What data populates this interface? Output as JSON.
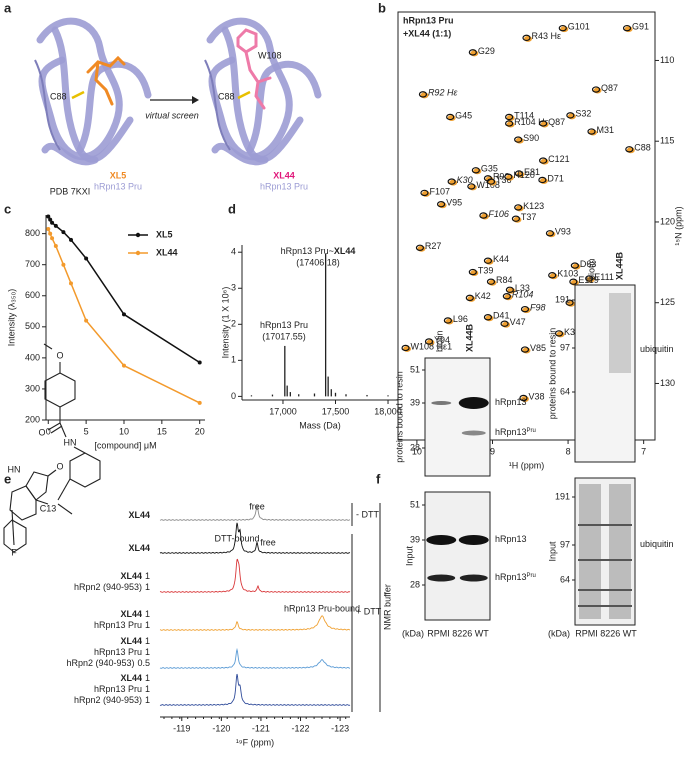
{
  "panels": {
    "a": {
      "label": "a",
      "ligand_site_left": "C88",
      "arrow": "virtual screen",
      "residue_right": "W108",
      "ligand_site_right": "C88",
      "compound_left": "XL5",
      "protein_left": "hRpn13 Pru",
      "pdb": "PDB 7KXI",
      "compound_right": "XL44",
      "protein_right": "hRpn13 Pru"
    },
    "e": {
      "label": "e",
      "structure": {
        "methoxy": "O",
        "amide_o": "O",
        "amide_n": "HN",
        "oxindole_n": "HN",
        "oxindole_o": "O",
        "stereo": "C13",
        "fluorine": "F"
      },
      "rows": [
        {
          "color": "#8a8a8a",
          "lines": [
            [
              "XL44"
            ]
          ]
        },
        {
          "color": "#111111",
          "lines": [
            [
              "XL44"
            ]
          ]
        },
        {
          "color": "#d9383a",
          "lines": [
            [
              "XL44",
              "1"
            ],
            [
              "hRpn2 (940-953)",
              "1"
            ]
          ]
        },
        {
          "color": "#f0a030",
          "lines": [
            [
              "XL44",
              "1"
            ],
            [
              "hRpn13 Pru",
              "1"
            ]
          ]
        },
        {
          "color": "#5b9bd5",
          "lines": [
            [
              "XL44",
              "1"
            ],
            [
              "hRpn13 Pru",
              "1"
            ],
            [
              "hRpn2 (940-953)",
              "0.5"
            ]
          ]
        },
        {
          "color": "#2f4b9a",
          "lines": [
            [
              "XL44",
              "1"
            ],
            [
              "hRpn13 Pru",
              "1"
            ],
            [
              "hRpn2 (940-953)",
              "1"
            ]
          ]
        }
      ],
      "annotations": [
        "free",
        "DTT-bound",
        "free",
        "hRpn13 Pru-bound"
      ],
      "minus_dtt": "- DTT",
      "plus_dtt": "+ DTT",
      "buffer": "NMR buffer",
      "xlim": [
        -118.45,
        -123.25
      ],
      "xticks": [
        -119,
        -120,
        -121,
        -122,
        -123
      ],
      "xlabel": "¹⁹F (ppm)"
    },
    "f": {
      "label": "f",
      "left": {
        "lanes": [
          "biotin",
          "XL44B"
        ],
        "pulldown_label": "proteins bound to resin",
        "pulldown_mw": [
          51,
          39,
          28
        ],
        "pulldown_bands": [
          {
            "base": "hRpn13"
          },
          {
            "base": "hRpn13",
            "sup": "Pru"
          }
        ],
        "input_label": "Input",
        "input_mw": [
          51,
          39,
          28
        ],
        "input_bands": [
          {
            "base": "hRpn13"
          },
          {
            "base": "hRpn13",
            "sup": "Pru"
          }
        ],
        "unit": "(kDa)",
        "cell_line": "RPMI 8226 WT"
      },
      "right": {
        "lanes": [
          "biotin",
          "XL44B"
        ],
        "pulldown_label": "proteins bound to resin",
        "pulldown_mw": [
          191,
          97,
          64
        ],
        "pulldown_bands": [
          {
            "base": "ubiquitin"
          }
        ],
        "input_label": "Input",
        "input_mw": [
          191,
          97,
          64
        ],
        "input_bands": [
          {
            "base": "ubiquitin"
          }
        ],
        "unit": "(kDa)",
        "cell_line": "RPMI 8226 WT"
      }
    }
  },
  "chart_data": [
    {
      "type": "scatter",
      "panel": "b",
      "series": [
        {
          "name": "hRpn13 Pru",
          "color": "#111111"
        },
        {
          "name": "+XL44 (1:1)",
          "color": "#f0a030"
        }
      ],
      "xlabel": "¹H (ppm)",
      "ylabel": "¹⁵N (ppm)",
      "xlim": [
        10.25,
        6.85
      ],
      "ylim": [
        107,
        133.5
      ],
      "xticks": [
        10,
        9,
        8,
        7
      ],
      "yticks": [
        110,
        115,
        120,
        125,
        130
      ],
      "peaks": [
        {
          "label": "G101",
          "h": 8.07,
          "n": 108.0,
          "label_color": "#222222"
        },
        {
          "label": "G91",
          "h": 7.22,
          "n": 108.0,
          "label_color": "#222222"
        },
        {
          "label": "R43 Hε",
          "h": 8.55,
          "n": 108.6,
          "label_color": "#222222"
        },
        {
          "label": "G29",
          "h": 9.26,
          "n": 109.5,
          "label_color": "#222222"
        },
        {
          "label": "R92 Hε",
          "h": 9.92,
          "n": 112.1,
          "label_color": "#777777"
        },
        {
          "label": "Q87",
          "h": 7.63,
          "n": 111.8,
          "label_color": "#222222"
        },
        {
          "label": "T114",
          "h": 8.78,
          "n": 113.5,
          "label_color": "#222222"
        },
        {
          "label": "R104 Hε",
          "h": 8.78,
          "n": 113.9,
          "label_color": "#222222"
        },
        {
          "label": "Q87",
          "h": 8.33,
          "n": 113.9,
          "label_color": "#222222"
        },
        {
          "label": "S32",
          "h": 7.97,
          "n": 113.4,
          "label_color": "#222222"
        },
        {
          "label": "G45",
          "h": 9.56,
          "n": 113.5,
          "label_color": "#222222"
        },
        {
          "label": "S90",
          "h": 8.66,
          "n": 114.9,
          "label_color": "#e0302c"
        },
        {
          "label": "M31",
          "h": 7.69,
          "n": 114.4,
          "label_color": "#222222"
        },
        {
          "label": "C121",
          "h": 8.33,
          "n": 116.2,
          "label_color": "#222222"
        },
        {
          "label": "C88",
          "h": 7.19,
          "n": 115.5,
          "label_color": "#222222"
        },
        {
          "label": "G35",
          "h": 9.22,
          "n": 116.8,
          "label_color": "#222222"
        },
        {
          "label": "E81",
          "h": 8.65,
          "n": 117.0,
          "label_color": "#222222"
        },
        {
          "label": "K30",
          "h": 9.54,
          "n": 117.5,
          "label_color": "#777777"
        },
        {
          "label": "R92",
          "h": 9.06,
          "n": 117.3,
          "label_color": "#222222"
        },
        {
          "label": "W108",
          "h": 9.28,
          "n": 117.8,
          "label_color": "#222222"
        },
        {
          "label": "T36",
          "h": 9.02,
          "n": 117.5,
          "label_color": "#222222"
        },
        {
          "label": "H120",
          "h": 8.79,
          "n": 117.2,
          "label_color": "#222222"
        },
        {
          "label": "D71",
          "h": 8.34,
          "n": 117.4,
          "label_color": "#222222"
        },
        {
          "label": "F107",
          "h": 9.9,
          "n": 118.2,
          "label_color": "#222222"
        },
        {
          "label": "V95",
          "h": 9.68,
          "n": 118.9,
          "label_color": "#222222"
        },
        {
          "label": "K123",
          "h": 8.66,
          "n": 119.1,
          "label_color": "#222222"
        },
        {
          "label": "F106",
          "h": 9.12,
          "n": 119.6,
          "label_color": "#777777"
        },
        {
          "label": "T37",
          "h": 8.69,
          "n": 119.8,
          "label_color": "#222222"
        },
        {
          "label": "R27",
          "h": 9.96,
          "n": 121.6,
          "label_color": "#222222"
        },
        {
          "label": "V93",
          "h": 8.24,
          "n": 120.7,
          "label_color": "#e0302c"
        },
        {
          "label": "K44",
          "h": 9.06,
          "n": 122.4,
          "label_color": "#222222"
        },
        {
          "label": "D63",
          "h": 7.91,
          "n": 122.7,
          "label_color": "#222222"
        },
        {
          "label": "E111",
          "h": 7.72,
          "n": 123.5,
          "label_color": "#222222"
        },
        {
          "label": "K103",
          "h": 8.21,
          "n": 123.3,
          "label_color": "#222222"
        },
        {
          "label": "R84",
          "h": 9.02,
          "n": 123.7,
          "label_color": "#222222"
        },
        {
          "label": "E119",
          "h": 7.93,
          "n": 123.7,
          "label_color": "#222222"
        },
        {
          "label": "T39",
          "h": 9.26,
          "n": 123.1,
          "label_color": "#222222"
        },
        {
          "label": "L33",
          "h": 8.77,
          "n": 124.2,
          "label_color": "#222222"
        },
        {
          "label": "K42",
          "h": 9.3,
          "n": 124.7,
          "label_color": "#222222"
        },
        {
          "label": "R104",
          "h": 8.81,
          "n": 124.6,
          "label_color": "#777777"
        },
        {
          "label": "F98",
          "h": 8.57,
          "n": 125.4,
          "label_color": "#777777"
        },
        {
          "label": "A28",
          "h": 7.98,
          "n": 125.0,
          "label_color": "#222222"
        },
        {
          "label": "D41",
          "h": 9.06,
          "n": 125.9,
          "label_color": "#222222"
        },
        {
          "label": "V47",
          "h": 8.84,
          "n": 126.3,
          "label_color": "#222222"
        },
        {
          "label": "L96",
          "h": 9.59,
          "n": 126.1,
          "label_color": "#222222"
        },
        {
          "label": "K34",
          "h": 8.12,
          "n": 126.9,
          "label_color": "#222222"
        },
        {
          "label": "Y94",
          "h": 9.84,
          "n": 127.4,
          "label_color": "#222222"
        },
        {
          "label": "W108 Hε1",
          "h": 10.15,
          "n": 127.8,
          "label_color": "#222222"
        },
        {
          "label": "V85",
          "h": 8.57,
          "n": 127.9,
          "label_color": "#e0302c"
        },
        {
          "label": "V38",
          "h": 8.59,
          "n": 130.9,
          "label_color": "#e0302c"
        }
      ]
    },
    {
      "type": "line",
      "panel": "c",
      "xlabel": "[compound] μM",
      "ylabel": "Intensity (λ₃₅₀)",
      "x": [
        0,
        0.25,
        0.5,
        1,
        2,
        3,
        5,
        10,
        20
      ],
      "series": [
        {
          "name": "XL5",
          "color": "#111111",
          "values": [
            855,
            845,
            835,
            825,
            805,
            780,
            720,
            540,
            385
          ]
        },
        {
          "name": "XL44",
          "color": "#f39a2c",
          "values": [
            815,
            800,
            785,
            760,
            700,
            640,
            520,
            375,
            255
          ]
        }
      ],
      "xlim": [
        -0.3,
        20.7
      ],
      "ylim": [
        200,
        860
      ],
      "xticks": [
        0,
        5,
        10,
        15,
        20
      ],
      "yticks": [
        200,
        300,
        400,
        500,
        600,
        700,
        800
      ]
    },
    {
      "type": "stem",
      "panel": "d",
      "xlabel": "Mass (Da)",
      "ylabel": "Intensity (1 X 10⁶)",
      "x": [
        16700,
        16900,
        17017.55,
        17040,
        17070,
        17150,
        17300,
        17406.18,
        17430,
        17460,
        17500,
        17600,
        17800,
        18000
      ],
      "values": [
        0.03,
        0.05,
        1.4,
        0.3,
        0.12,
        0.06,
        0.08,
        3.95,
        0.55,
        0.2,
        0.1,
        0.06,
        0.04,
        0.03
      ],
      "color": "#222222",
      "annotations": [
        {
          "parts": [
            "hRpn13 Pru~",
            "XL44"
          ],
          "mass": "(17406.18)"
        },
        {
          "parts": [
            "hRpn13 Pru"
          ],
          "mass": "(17017.55)"
        }
      ],
      "xlim": [
        16610,
        18095
      ],
      "ylim": [
        -0.1,
        4.2
      ],
      "xticks": [
        {
          "value": 17000,
          "label": "17,000"
        },
        {
          "value": 17500,
          "label": "17,500"
        },
        {
          "value": 18000,
          "label": "18,000"
        }
      ],
      "yticks": [
        0,
        1,
        2,
        3,
        4
      ]
    }
  ]
}
